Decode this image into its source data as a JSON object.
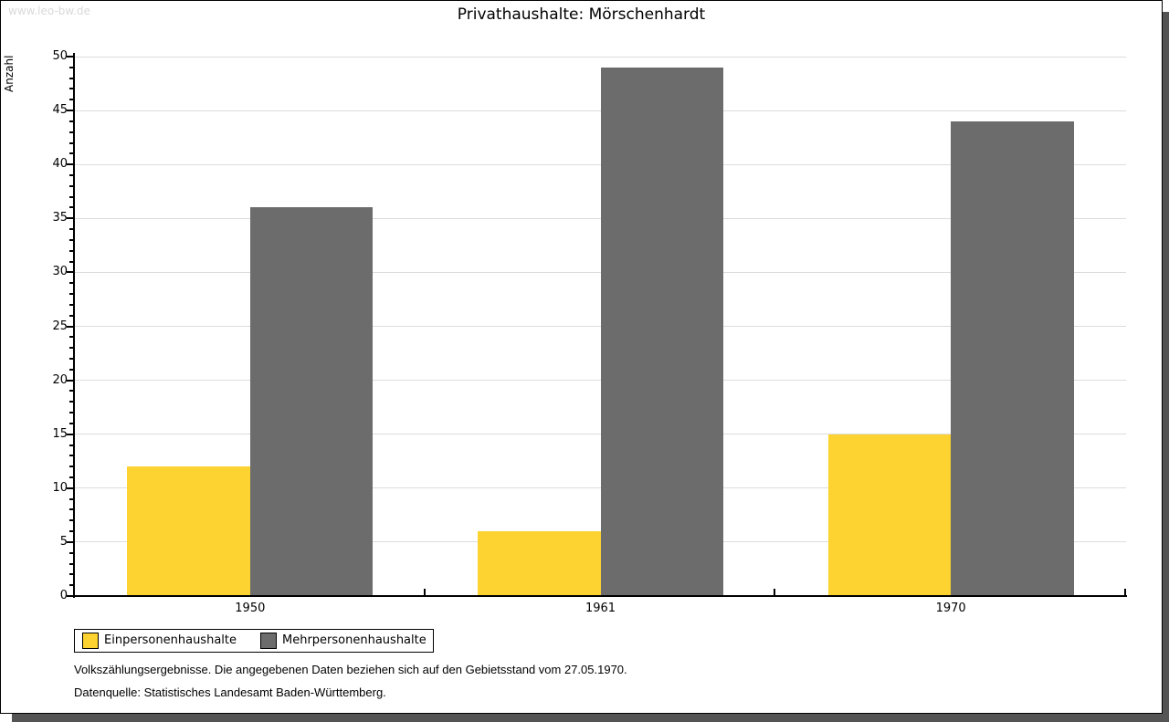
{
  "watermark": "www.leo-bw.de",
  "title": "Privathaushalte: Mörschenhardt",
  "chart_data": {
    "type": "bar",
    "title": "Privathaushalte: Mörschenhardt",
    "categories": [
      "1950",
      "1961",
      "1970"
    ],
    "series": [
      {
        "name": "Einpersonenhaushalte",
        "color": "#FCD330",
        "values": [
          12,
          6,
          15
        ]
      },
      {
        "name": "Mehrpersonenhaushalte",
        "color": "#6C6C6C",
        "values": [
          36,
          49,
          44
        ]
      }
    ],
    "xlabel": "",
    "ylabel": "Anzahl",
    "ylim": [
      0,
      50
    ],
    "ytick_step": 5,
    "minor_tick_step": 1,
    "grid": true,
    "gridline_color": "#dcdcdc",
    "legend_position": "bottom-left"
  },
  "footnotes": [
    "Volkszählungsergebnisse. Die angegebenen Daten beziehen sich auf den Gebietsstand vom 27.05.1970.",
    "Datenquelle: Statistisches Landesamt Baden-Württemberg."
  ]
}
